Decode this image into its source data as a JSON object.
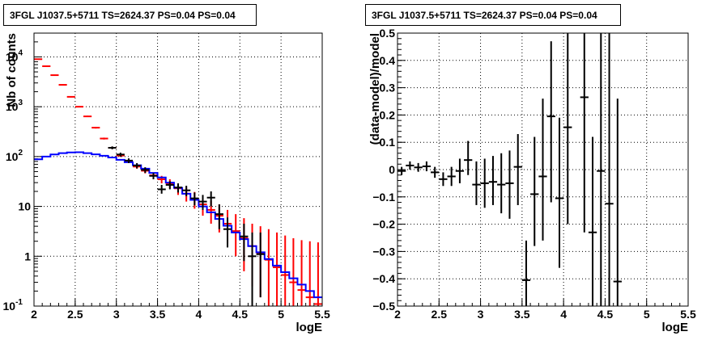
{
  "chart_data": [
    {
      "type": "scatter",
      "title": "3FGL J1037.5+5711 TS=2624.37 PS=0.04 PS=0.04",
      "xlabel": "logE",
      "ylabel": "Nb of counts",
      "xlim": [
        2,
        5.5
      ],
      "ylim": [
        0.1,
        30000
      ],
      "yscale": "log",
      "grid": true,
      "x_ticks": [
        "2",
        "2.5",
        "3",
        "3.5",
        "4",
        "4.5",
        "5",
        "5.5"
      ],
      "y_ticks": [
        {
          "value": 0.1,
          "base": "10",
          "exp": "-1"
        },
        {
          "value": 1,
          "base": "1",
          "exp": ""
        },
        {
          "value": 10,
          "base": "10",
          "exp": ""
        },
        {
          "value": 100,
          "base": "10",
          "exp": "2"
        },
        {
          "value": 1000,
          "base": "10",
          "exp": "3"
        },
        {
          "value": 10000,
          "base": "10",
          "exp": "4"
        }
      ],
      "series": [
        {
          "color": "#ff0000",
          "style": "points-with-errors",
          "points": [
            {
              "x": 2.05,
              "y": 9000,
              "lo": 8800,
              "hi": 9200
            },
            {
              "x": 2.15,
              "y": 6500,
              "lo": 6350,
              "hi": 6650
            },
            {
              "x": 2.25,
              "y": 4300,
              "lo": 4200,
              "hi": 4400
            },
            {
              "x": 2.35,
              "y": 2750,
              "lo": 2680,
              "hi": 2820
            },
            {
              "x": 2.45,
              "y": 1580,
              "lo": 1540,
              "hi": 1620
            },
            {
              "x": 2.55,
              "y": 1000,
              "lo": 970,
              "hi": 1030
            },
            {
              "x": 2.65,
              "y": 640,
              "lo": 620,
              "hi": 660
            },
            {
              "x": 2.75,
              "y": 380,
              "lo": 365,
              "hi": 395
            },
            {
              "x": 2.85,
              "y": 230,
              "lo": 220,
              "hi": 240
            },
            {
              "x": 2.95,
              "y": 150,
              "lo": 142,
              "hi": 158
            },
            {
              "x": 3.05,
              "y": 105,
              "lo": 98,
              "hi": 112
            },
            {
              "x": 3.15,
              "y": 82,
              "lo": 75,
              "hi": 89
            },
            {
              "x": 3.25,
              "y": 63,
              "lo": 57,
              "hi": 70
            },
            {
              "x": 3.35,
              "y": 52,
              "lo": 46,
              "hi": 58
            },
            {
              "x": 3.45,
              "y": 42,
              "lo": 36,
              "hi": 48
            },
            {
              "x": 3.55,
              "y": 35,
              "lo": 29,
              "hi": 41
            },
            {
              "x": 3.65,
              "y": 29,
              "lo": 23,
              "hi": 35
            },
            {
              "x": 3.75,
              "y": 23,
              "lo": 17,
              "hi": 29
            },
            {
              "x": 3.85,
              "y": 18,
              "lo": 12.5,
              "hi": 24
            },
            {
              "x": 3.95,
              "y": 14,
              "lo": 9,
              "hi": 19.5
            },
            {
              "x": 4.05,
              "y": 11,
              "lo": 6.5,
              "hi": 16
            },
            {
              "x": 4.15,
              "y": 8.5,
              "lo": 4.5,
              "hi": 13
            },
            {
              "x": 4.25,
              "y": 6.5,
              "lo": 3,
              "hi": 11
            },
            {
              "x": 4.35,
              "y": 4.5,
              "lo": 1.8,
              "hi": 8.5
            },
            {
              "x": 4.45,
              "y": 3.2,
              "lo": 1.0,
              "hi": 7
            },
            {
              "x": 4.55,
              "y": 2.3,
              "lo": 0.5,
              "hi": 5.8
            },
            {
              "x": 4.65,
              "y": 1.6,
              "lo": 0.25,
              "hi": 4.5
            },
            {
              "x": 4.75,
              "y": 1.15,
              "lo": 0.15,
              "hi": 4.0
            },
            {
              "x": 4.85,
              "y": 0.85,
              "lo": 0.1,
              "hi": 3.5
            },
            {
              "x": 4.95,
              "y": 0.6,
              "lo": 0.1,
              "hi": 3.0
            },
            {
              "x": 5.05,
              "y": 0.42,
              "lo": 0.1,
              "hi": 2.6
            },
            {
              "x": 5.15,
              "y": 0.3,
              "lo": 0.1,
              "hi": 2.3
            },
            {
              "x": 5.25,
              "y": 0.21,
              "lo": 0.1,
              "hi": 2.1
            },
            {
              "x": 5.35,
              "y": 0.15,
              "lo": 0.1,
              "hi": 2.0
            },
            {
              "x": 5.45,
              "y": 0.11,
              "lo": 0.1,
              "hi": 1.9
            }
          ]
        },
        {
          "color": "#0000ff",
          "style": "step",
          "points": [
            {
              "x": 2.05,
              "y": 88
            },
            {
              "x": 2.15,
              "y": 100
            },
            {
              "x": 2.25,
              "y": 110
            },
            {
              "x": 2.35,
              "y": 117
            },
            {
              "x": 2.45,
              "y": 121
            },
            {
              "x": 2.55,
              "y": 122
            },
            {
              "x": 2.65,
              "y": 117
            },
            {
              "x": 2.75,
              "y": 111
            },
            {
              "x": 2.85,
              "y": 104
            },
            {
              "x": 2.95,
              "y": 96
            },
            {
              "x": 3.05,
              "y": 86
            },
            {
              "x": 3.15,
              "y": 77
            },
            {
              "x": 3.25,
              "y": 67
            },
            {
              "x": 3.35,
              "y": 57
            },
            {
              "x": 3.45,
              "y": 47
            },
            {
              "x": 3.55,
              "y": 38
            },
            {
              "x": 3.65,
              "y": 30
            },
            {
              "x": 3.75,
              "y": 23.5
            },
            {
              "x": 3.85,
              "y": 18
            },
            {
              "x": 3.95,
              "y": 13.5
            },
            {
              "x": 4.05,
              "y": 10
            },
            {
              "x": 4.15,
              "y": 7.6
            },
            {
              "x": 4.25,
              "y": 5.6
            },
            {
              "x": 4.35,
              "y": 4.1
            },
            {
              "x": 4.45,
              "y": 3.0
            },
            {
              "x": 4.55,
              "y": 2.2
            },
            {
              "x": 4.65,
              "y": 1.6
            },
            {
              "x": 4.75,
              "y": 1.2
            },
            {
              "x": 4.85,
              "y": 0.88
            },
            {
              "x": 4.95,
              "y": 0.65
            },
            {
              "x": 5.05,
              "y": 0.48
            },
            {
              "x": 5.15,
              "y": 0.36
            },
            {
              "x": 5.25,
              "y": 0.27
            },
            {
              "x": 5.35,
              "y": 0.2
            },
            {
              "x": 5.45,
              "y": 0.15
            }
          ]
        },
        {
          "color": "#000000",
          "style": "points-with-errors",
          "points": [
            {
              "x": 2.95,
              "y": 150,
              "lo": 140,
              "hi": 160
            },
            {
              "x": 3.05,
              "y": 110,
              "lo": 100,
              "hi": 120
            },
            {
              "x": 3.15,
              "y": 83,
              "lo": 74,
              "hi": 92
            },
            {
              "x": 3.25,
              "y": 66,
              "lo": 58,
              "hi": 74
            },
            {
              "x": 3.35,
              "y": 54,
              "lo": 47,
              "hi": 61
            },
            {
              "x": 3.45,
              "y": 41,
              "lo": 35,
              "hi": 47
            },
            {
              "x": 3.55,
              "y": 22,
              "lo": 18,
              "hi": 27
            },
            {
              "x": 3.65,
              "y": 27,
              "lo": 22,
              "hi": 32
            },
            {
              "x": 3.75,
              "y": 24,
              "lo": 19,
              "hi": 29
            },
            {
              "x": 3.85,
              "y": 21,
              "lo": 16,
              "hi": 26
            },
            {
              "x": 3.95,
              "y": 14.5,
              "lo": 10.5,
              "hi": 19
            },
            {
              "x": 4.05,
              "y": 12.5,
              "lo": 8.5,
              "hi": 17
            },
            {
              "x": 4.15,
              "y": 15,
              "lo": 10,
              "hi": 20
            },
            {
              "x": 4.25,
              "y": 7,
              "lo": 3.5,
              "hi": 11
            },
            {
              "x": 4.35,
              "y": 3.5,
              "lo": 1.5,
              "hi": 6
            },
            {
              "x": 4.55,
              "y": 2.5,
              "lo": 0.8,
              "hi": 4.5
            },
            {
              "x": 4.65,
              "y": 1.0,
              "lo": 0.1,
              "hi": 3.0
            },
            {
              "x": 4.75,
              "y": 1.1,
              "lo": 0.15,
              "hi": 3.0
            }
          ]
        }
      ]
    },
    {
      "type": "scatter",
      "title": "3FGL J1037.5+5711 TS=2624.37 PS=0.04 PS=0.04",
      "xlabel": "logE",
      "ylabel": "(data-model)/model",
      "xlim": [
        2,
        5.5
      ],
      "ylim": [
        -0.5,
        0.5
      ],
      "grid": true,
      "x_ticks": [
        "2",
        "2.5",
        "3",
        "3.5",
        "4",
        "4.5",
        "5",
        "5.5"
      ],
      "y_ticks": [
        "−0.5",
        "−0.4",
        "−0.3",
        "−0.2",
        "−0.1",
        "0",
        "0.1",
        "0.2",
        "0.3",
        "0.4",
        "0.5"
      ],
      "y_tick_values": [
        -0.5,
        -0.4,
        -0.3,
        -0.2,
        -0.1,
        0,
        0.1,
        0.2,
        0.3,
        0.4,
        0.5
      ],
      "series": [
        {
          "color": "#000000",
          "style": "points-with-errors",
          "points": [
            {
              "x": 2.05,
              "y": -0.005,
              "lo": -0.02,
              "hi": 0.01
            },
            {
              "x": 2.15,
              "y": 0.015,
              "lo": 0.0,
              "hi": 0.03
            },
            {
              "x": 2.25,
              "y": 0.008,
              "lo": -0.008,
              "hi": 0.024
            },
            {
              "x": 2.35,
              "y": 0.012,
              "lo": -0.006,
              "hi": 0.03
            },
            {
              "x": 2.45,
              "y": -0.01,
              "lo": -0.03,
              "hi": 0.01
            },
            {
              "x": 2.55,
              "y": -0.035,
              "lo": -0.06,
              "hi": -0.01
            },
            {
              "x": 2.65,
              "y": -0.025,
              "lo": -0.06,
              "hi": 0.01
            },
            {
              "x": 2.75,
              "y": -0.005,
              "lo": -0.05,
              "hi": 0.04
            },
            {
              "x": 2.85,
              "y": 0.035,
              "lo": -0.02,
              "hi": 0.105
            },
            {
              "x": 2.95,
              "y": -0.055,
              "lo": -0.13,
              "hi": 0.03
            },
            {
              "x": 3.05,
              "y": -0.05,
              "lo": -0.14,
              "hi": 0.04
            },
            {
              "x": 3.15,
              "y": -0.045,
              "lo": -0.13,
              "hi": 0.05
            },
            {
              "x": 3.25,
              "y": -0.055,
              "lo": -0.16,
              "hi": 0.06
            },
            {
              "x": 3.35,
              "y": -0.05,
              "lo": -0.18,
              "hi": 0.07
            },
            {
              "x": 3.45,
              "y": 0.01,
              "lo": -0.13,
              "hi": 0.13
            },
            {
              "x": 3.55,
              "y": -0.405,
              "lo": -0.5,
              "hi": -0.26
            },
            {
              "x": 3.65,
              "y": -0.09,
              "lo": -0.28,
              "hi": 0.12
            },
            {
              "x": 3.75,
              "y": -0.025,
              "lo": -0.26,
              "hi": 0.26
            },
            {
              "x": 3.85,
              "y": 0.195,
              "lo": -0.12,
              "hi": 0.47
            },
            {
              "x": 3.95,
              "y": -0.105,
              "lo": -0.36,
              "hi": 0.19
            },
            {
              "x": 4.05,
              "y": 0.155,
              "lo": -0.2,
              "hi": 0.5
            },
            {
              "x": 4.25,
              "y": 0.265,
              "lo": -0.23,
              "hi": 0.5
            },
            {
              "x": 4.35,
              "y": -0.23,
              "lo": -0.5,
              "hi": 0.12
            },
            {
              "x": 4.45,
              "y": -0.005,
              "lo": -0.5,
              "hi": 0.5
            },
            {
              "x": 4.55,
              "y": -0.125,
              "lo": -0.5,
              "hi": 0.5
            },
            {
              "x": 4.65,
              "y": -0.41,
              "lo": -0.5,
              "hi": 0.26
            }
          ]
        }
      ]
    }
  ]
}
